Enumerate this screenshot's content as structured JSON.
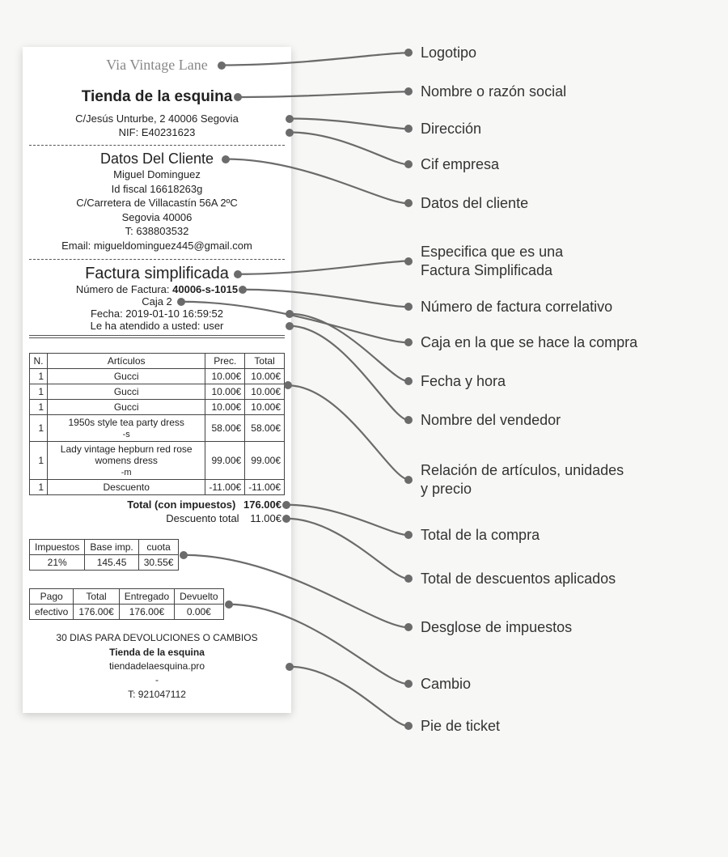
{
  "colors": {
    "page_bg": "#f7f7f5",
    "receipt_bg": "#ffffff",
    "text": "#222222",
    "connector": "#6b6b6b",
    "logo_gray": "#888888",
    "border": "#444444"
  },
  "receipt": {
    "logo_text": "Via Vintage Lane",
    "store_name": "Tienda de la esquina",
    "address": "C/Jesús Unturbe, 2 40006 Segovia",
    "nif": "NIF: E40231623",
    "client": {
      "title": "Datos Del Cliente",
      "name": "Miguel Dominguez",
      "fiscal_id": "Id fiscal 16618263g",
      "address": "C/Carretera de Villacastín 56A 2ºC",
      "city": "Segovia 40006",
      "phone": "T: 638803532",
      "email": "Email: migueldominguez445@gmail.com"
    },
    "invoice": {
      "title": "Factura simplificada",
      "number_label": "Número de Factura: ",
      "number": "40006-s-1015",
      "register": "Caja 2",
      "datetime": "Fecha: 2019-01-10 16:59:52",
      "served_by": "Le ha atendido a usted: user"
    },
    "items_table": {
      "headers": {
        "n": "N.",
        "article": "Artículos",
        "price": "Prec.",
        "total": "Total"
      },
      "rows": [
        {
          "qty": "1",
          "name": "Gucci",
          "extra": "",
          "price": "10.00€",
          "total": "10.00€"
        },
        {
          "qty": "1",
          "name": "Gucci",
          "extra": "",
          "price": "10.00€",
          "total": "10.00€"
        },
        {
          "qty": "1",
          "name": "Gucci",
          "extra": "",
          "price": "10.00€",
          "total": "10.00€"
        },
        {
          "qty": "1",
          "name": "1950s style tea party dress",
          "extra": "-s",
          "price": "58.00€",
          "total": "58.00€"
        },
        {
          "qty": "1",
          "name": "Lady vintage hepburn red rose womens dress",
          "extra": "-m",
          "price": "99.00€",
          "total": "99.00€"
        },
        {
          "qty": "1",
          "name": "Descuento",
          "extra": "",
          "price": "-11.00€",
          "total": "-11.00€"
        }
      ],
      "grand_total_label": "Total (con impuestos)",
      "grand_total": "176.00€",
      "discount_label": "Descuento total",
      "discount_total": "11.00€"
    },
    "tax_table": {
      "headers": {
        "tax": "Impuestos",
        "base": "Base imp.",
        "quota": "cuota"
      },
      "row": {
        "tax": "21%",
        "base": "145.45",
        "quota": "30.55€"
      }
    },
    "pay_table": {
      "headers": {
        "method": "Pago",
        "total": "Total",
        "given": "Entregado",
        "returned": "Devuelto"
      },
      "row": {
        "method": "efectivo",
        "total": "176.00€",
        "given": "176.00€",
        "returned": "0.00€"
      }
    },
    "footer": {
      "returns": "30 DIAS PARA DEVOLUCIONES O CAMBIOS",
      "store": "Tienda de la esquina",
      "web": "tiendadelaesquina.pro",
      "dash": "-",
      "phone": "T: 921047112"
    }
  },
  "annotations": {
    "logo": "Logotipo",
    "name": "Nombre o razón social",
    "address": "Dirección",
    "cif": "Cif empresa",
    "client": "Datos del cliente",
    "simplified_1": "Especifica que es una",
    "simplified_2": "Factura Simplificada",
    "inv_number": "Número de factura correlativo",
    "register": "Caja en la que se hace la compra",
    "datetime": "Fecha y hora",
    "seller": "Nombre del vendedor",
    "items_1": "Relación de artículos, unidades",
    "items_2": "y precio",
    "total": "Total de la compra",
    "discount": "Total de descuentos aplicados",
    "tax": "Desglose de impuestos",
    "change": "Cambio",
    "footer": "Pie de ticket"
  }
}
